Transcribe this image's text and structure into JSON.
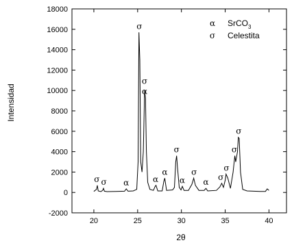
{
  "chart_data": {
    "type": "line",
    "xlabel": "2θ",
    "ylabel": "Intensidad",
    "xlim": [
      17.5,
      42
    ],
    "ylim": [
      -2000,
      18000
    ],
    "xticks": [
      20,
      25,
      30,
      35,
      40
    ],
    "yticks": [
      -2000,
      0,
      2000,
      4000,
      6000,
      8000,
      10000,
      12000,
      14000,
      16000,
      18000
    ],
    "legend": {
      "placement": "top-right",
      "entries": [
        {
          "symbol": "α",
          "label": "SrCO",
          "subscript": "3"
        },
        {
          "symbol": "σ",
          "label": "Celestita"
        }
      ]
    },
    "series": [
      {
        "color": "#000000",
        "x": [
          20.0,
          20.3,
          20.4,
          20.5,
          20.8,
          21.0,
          21.1,
          21.2,
          21.5,
          22.5,
          23.5,
          23.7,
          23.9,
          24.5,
          24.9,
          25.05,
          25.15,
          25.25,
          25.35,
          25.5,
          25.65,
          25.8,
          25.9,
          26.0,
          26.15,
          26.4,
          26.8,
          27.0,
          27.1,
          27.3,
          27.8,
          28.0,
          28.1,
          28.3,
          29.0,
          29.2,
          29.35,
          29.45,
          29.55,
          29.75,
          29.95,
          30.1,
          30.3,
          30.8,
          31.2,
          31.4,
          31.6,
          32.0,
          32.6,
          32.8,
          33.0,
          34.0,
          34.4,
          34.6,
          34.8,
          35.0,
          35.1,
          35.3,
          35.6,
          35.9,
          36.1,
          36.2,
          36.4,
          36.5,
          36.6,
          36.75,
          37.0,
          37.5,
          39.0,
          39.6,
          39.8,
          40.0
        ],
        "y": [
          100,
          300,
          700,
          150,
          80,
          200,
          400,
          120,
          80,
          100,
          120,
          350,
          120,
          150,
          300,
          3000,
          15700,
          13000,
          3000,
          2000,
          4000,
          10000,
          9200,
          4000,
          1000,
          300,
          200,
          600,
          700,
          150,
          150,
          1100,
          1400,
          200,
          250,
          500,
          3000,
          3600,
          2500,
          500,
          250,
          600,
          200,
          200,
          800,
          1400,
          700,
          200,
          200,
          400,
          150,
          200,
          550,
          900,
          500,
          1200,
          1800,
          1400,
          400,
          2000,
          3600,
          3000,
          4000,
          5400,
          5300,
          2000,
          300,
          150,
          100,
          100,
          350,
          200
        ]
      }
    ],
    "peak_labels": [
      {
        "symbol": "σ",
        "x": 20.35,
        "y": 700
      },
      {
        "symbol": "σ",
        "x": 21.15,
        "y": 400
      },
      {
        "symbol": "α",
        "x": 23.7,
        "y": 350
      },
      {
        "symbol": "σ",
        "x": 25.2,
        "y": 15700
      },
      {
        "symbol": "σ",
        "x": 25.8,
        "y": 10300
      },
      {
        "symbol": "α",
        "x": 25.8,
        "y": 9300
      },
      {
        "symbol": "α",
        "x": 27.05,
        "y": 700
      },
      {
        "symbol": "α",
        "x": 28.1,
        "y": 1400
      },
      {
        "symbol": "σ",
        "x": 29.45,
        "y": 3600
      },
      {
        "symbol": "α",
        "x": 30.1,
        "y": 600
      },
      {
        "symbol": "σ",
        "x": 31.45,
        "y": 1400
      },
      {
        "symbol": "α",
        "x": 32.8,
        "y": 400
      },
      {
        "symbol": "σ",
        "x": 34.5,
        "y": 900
      },
      {
        "symbol": "σ",
        "x": 35.15,
        "y": 1800
      },
      {
        "symbol": "σ",
        "x": 36.05,
        "y": 3600
      },
      {
        "symbol": "σ",
        "x": 36.55,
        "y": 5400
      }
    ]
  }
}
